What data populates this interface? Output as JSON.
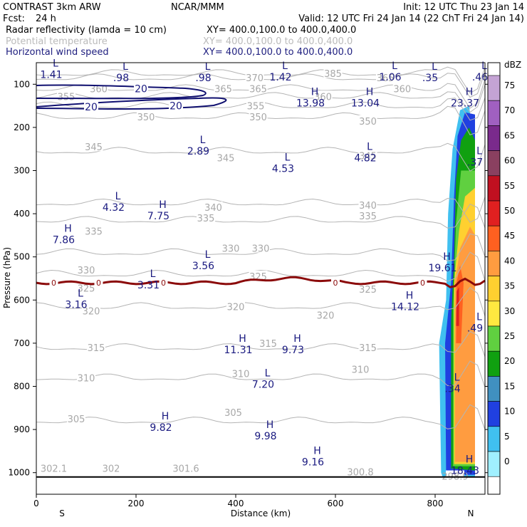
{
  "header": {
    "model": "CONTRAST  3km ARW",
    "org": "NCAR/MMM",
    "init": "Init: 12 UTC Thu 23 Jan 14",
    "fcst_label": "Fcst:",
    "fcst_value": "24 h",
    "valid": "Valid: 12 UTC Fri 24 Jan 14 (22 ChT Fri 24 Jan 14)",
    "fields": [
      {
        "name": "Radar reflectivity (lamda = 10 cm)",
        "xy": "XY= 400.0,100.0 to 400.0,400.0",
        "color": "#000000"
      },
      {
        "name": "Potential temperature",
        "xy": "XY= 400.0,100.0 to 400.0,400.0",
        "color": "#bbbbbb"
      },
      {
        "name": "Horizontal wind speed",
        "xy": "XY= 400.0,100.0 to 400.0,400.0",
        "color": "#202080"
      }
    ]
  },
  "chart_data": {
    "type": "cross-section contour",
    "title": "Radar reflectivity, potential temperature and horizontal wind speed cross section",
    "xlabel": "Distance (km)",
    "ylabel": "Pressure (hPa)",
    "xlim": [
      0,
      900
    ],
    "ylim": [
      1050,
      50
    ],
    "x_ticks": [
      0,
      200,
      400,
      600,
      800
    ],
    "y_ticks": [
      100,
      200,
      300,
      400,
      500,
      600,
      700,
      800,
      900,
      1000
    ],
    "x_end_labels": {
      "left": "S",
      "right": "N"
    },
    "colorbar": {
      "unit": "dBZ",
      "levels": [
        75,
        70,
        65,
        60,
        55,
        50,
        45,
        40,
        35,
        30,
        25,
        20,
        15,
        10,
        5,
        0
      ],
      "colors": [
        "#c4a3d4",
        "#a060c0",
        "#7a2a8c",
        "#8a4060",
        "#c01020",
        "#e02020",
        "#ff6020",
        "#ff9c40",
        "#ffd030",
        "#ffe840",
        "#60d040",
        "#10a010",
        "#4090c0",
        "#2040e0",
        "#40c0f0",
        "#a0f0ff"
      ]
    },
    "theta_contours": {
      "unit": "K",
      "levels": [
        {
          "value": 385,
          "p": 75
        },
        {
          "value": 370,
          "p": 85
        },
        {
          "value": 365,
          "p": 110
        },
        {
          "value": 360,
          "p": 128
        },
        {
          "value": 355,
          "p": 150
        },
        {
          "value": 350,
          "p": 175
        },
        {
          "value": 345,
          "p": 255
        },
        {
          "value": 340,
          "p": 375
        },
        {
          "value": 335,
          "p": 415
        },
        {
          "value": 330,
          "p": 490
        },
        {
          "value": 325,
          "p": 540
        },
        {
          "value": 320,
          "p": 615
        },
        {
          "value": 315,
          "p": 710
        },
        {
          "value": 310,
          "p": 780
        },
        {
          "value": 305,
          "p": 880
        }
      ],
      "labels": [
        {
          "text": "385",
          "x": 595,
          "p": 75
        },
        {
          "text": "370",
          "x": 438,
          "p": 85
        },
        {
          "text": "365",
          "x": 700,
          "p": 85
        },
        {
          "text": "365",
          "x": 375,
          "p": 110
        },
        {
          "text": "365",
          "x": 445,
          "p": 110
        },
        {
          "text": "360",
          "x": 125,
          "p": 110
        },
        {
          "text": "360",
          "x": 575,
          "p": 128
        },
        {
          "text": "360",
          "x": 734,
          "p": 110
        },
        {
          "text": "355",
          "x": 60,
          "p": 128
        },
        {
          "text": "355",
          "x": 440,
          "p": 150
        },
        {
          "text": "350",
          "x": 220,
          "p": 175
        },
        {
          "text": "350",
          "x": 445,
          "p": 175
        },
        {
          "text": "350",
          "x": 665,
          "p": 185
        },
        {
          "text": "345",
          "x": 115,
          "p": 245
        },
        {
          "text": "345",
          "x": 380,
          "p": 270
        },
        {
          "text": "345",
          "x": 665,
          "p": 265
        },
        {
          "text": "340",
          "x": 355,
          "p": 385
        },
        {
          "text": "340",
          "x": 665,
          "p": 380
        },
        {
          "text": "335",
          "x": 115,
          "p": 440
        },
        {
          "text": "335",
          "x": 340,
          "p": 410
        },
        {
          "text": "335",
          "x": 665,
          "p": 405
        },
        {
          "text": "330",
          "x": 100,
          "p": 530
        },
        {
          "text": "330",
          "x": 390,
          "p": 480
        },
        {
          "text": "330",
          "x": 450,
          "p": 480
        },
        {
          "text": "325",
          "x": 100,
          "p": 572
        },
        {
          "text": "325",
          "x": 445,
          "p": 545
        },
        {
          "text": "325",
          "x": 665,
          "p": 575
        },
        {
          "text": "320",
          "x": 110,
          "p": 625
        },
        {
          "text": "320",
          "x": 400,
          "p": 615
        },
        {
          "text": "320",
          "x": 580,
          "p": 635
        },
        {
          "text": "315",
          "x": 120,
          "p": 710
        },
        {
          "text": "315",
          "x": 465,
          "p": 700
        },
        {
          "text": "315",
          "x": 665,
          "p": 710
        },
        {
          "text": "310",
          "x": 100,
          "p": 780
        },
        {
          "text": "310",
          "x": 410,
          "p": 770
        },
        {
          "text": "310",
          "x": 650,
          "p": 760
        },
        {
          "text": "305",
          "x": 80,
          "p": 875
        },
        {
          "text": "305",
          "x": 395,
          "p": 860
        },
        {
          "text": "302.1",
          "x": 35,
          "p": 990
        },
        {
          "text": "302",
          "x": 150,
          "p": 990
        },
        {
          "text": "301.6",
          "x": 300,
          "p": 990
        },
        {
          "text": "300.8",
          "x": 650,
          "p": 998
        },
        {
          "text": "298.9",
          "x": 840,
          "p": 1008
        }
      ]
    },
    "wind_speed_contours": {
      "unit": "m/s",
      "labels": [
        {
          "text": "20",
          "x": 210,
          "p": 110
        },
        {
          "text": "20",
          "x": 280,
          "p": 150
        },
        {
          "text": "20",
          "x": 110,
          "p": 152
        }
      ]
    },
    "freezing_level": {
      "value": 0,
      "p": 560,
      "labels": [
        {
          "text": "0",
          "x": 35
        },
        {
          "text": "0",
          "x": 125
        },
        {
          "text": "0",
          "x": 255
        },
        {
          "text": "0",
          "x": 600
        },
        {
          "text": "0",
          "x": 775
        }
      ]
    },
    "extrema": [
      {
        "type": "L",
        "value": "1.41",
        "x": 30,
        "p": 72
      },
      {
        "type": "L",
        "value": ".98",
        "x": 170,
        "p": 80
      },
      {
        "type": "L",
        "value": ".98",
        "x": 335,
        "p": 80
      },
      {
        "type": "L",
        "value": "1.42",
        "x": 490,
        "p": 78
      },
      {
        "type": "L",
        "value": "1.06",
        "x": 710,
        "p": 78
      },
      {
        "type": "L",
        "value": ".35",
        "x": 790,
        "p": 80
      },
      {
        "type": "L",
        "value": ".46",
        "x": 890,
        "p": 78
      },
      {
        "type": "H",
        "value": "13.98",
        "x": 550,
        "p": 138
      },
      {
        "type": "H",
        "value": "13.04",
        "x": 660,
        "p": 138
      },
      {
        "type": "H",
        "value": "23.37",
        "x": 860,
        "p": 138
      },
      {
        "type": "L",
        "value": "2.89",
        "x": 325,
        "p": 250
      },
      {
        "type": "L",
        "value": "4.82",
        "x": 660,
        "p": 265
      },
      {
        "type": "L",
        "value": ".37",
        "x": 880,
        "p": 275
      },
      {
        "type": "L",
        "value": "4.53",
        "x": 495,
        "p": 290
      },
      {
        "type": "L",
        "value": "4.32",
        "x": 155,
        "p": 380
      },
      {
        "type": "H",
        "value": "7.75",
        "x": 245,
        "p": 400
      },
      {
        "type": "H",
        "value": "7.86",
        "x": 55,
        "p": 455
      },
      {
        "type": "L",
        "value": "3.56",
        "x": 335,
        "p": 515
      },
      {
        "type": "H",
        "value": "19.61",
        "x": 815,
        "p": 520
      },
      {
        "type": "L",
        "value": "3.31",
        "x": 225,
        "p": 560
      },
      {
        "type": "L",
        "value": "3.16",
        "x": 80,
        "p": 605
      },
      {
        "type": "H",
        "value": "14.12",
        "x": 740,
        "p": 610
      },
      {
        "type": "L",
        "value": ".49",
        "x": 880,
        "p": 660
      },
      {
        "type": "H",
        "value": "11.31",
        "x": 405,
        "p": 710
      },
      {
        "type": "H",
        "value": "9.73",
        "x": 515,
        "p": 710
      },
      {
        "type": "L",
        "value": "7.20",
        "x": 455,
        "p": 790
      },
      {
        "type": "L",
        "value": ".34",
        "x": 835,
        "p": 800
      },
      {
        "type": "H",
        "value": "9.82",
        "x": 250,
        "p": 890
      },
      {
        "type": "H",
        "value": "9.98",
        "x": 460,
        "p": 910
      },
      {
        "type": "H",
        "value": "9.16",
        "x": 555,
        "p": 970
      },
      {
        "type": "H",
        "value": "18.43",
        "x": 860,
        "p": 990
      }
    ],
    "ground": {
      "p": 1010
    }
  }
}
